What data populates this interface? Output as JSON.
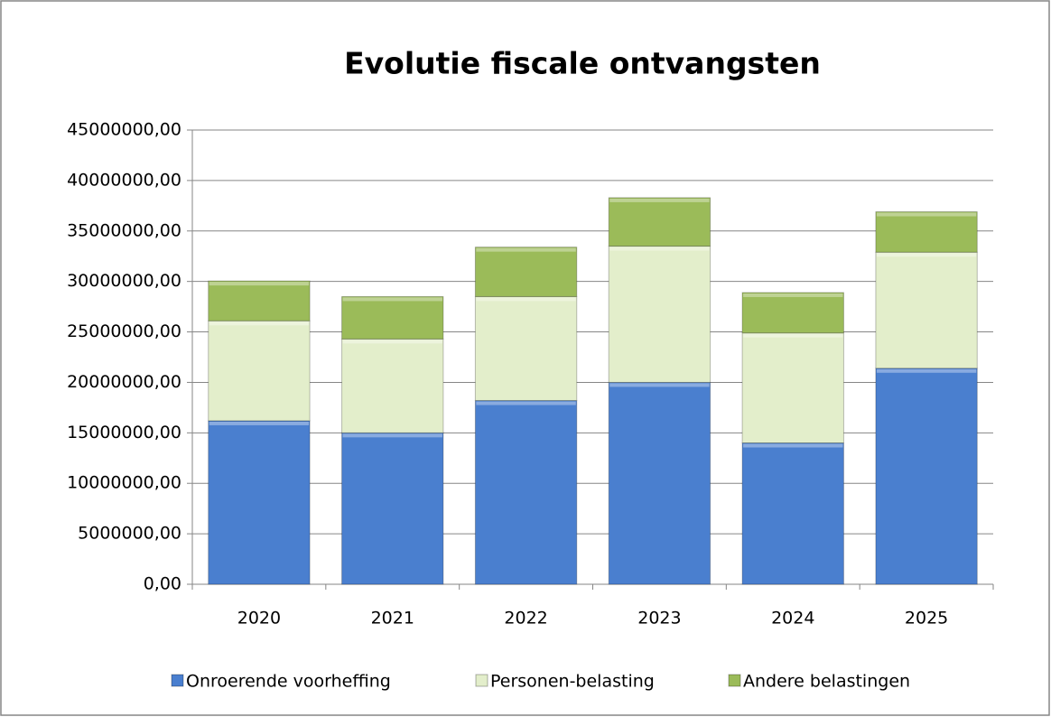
{
  "chart_data": {
    "type": "stacked_bar",
    "title": "Evolutie fiscale ontvangsten",
    "categories": [
      "2020",
      "2021",
      "2022",
      "2023",
      "2024",
      "2025"
    ],
    "series": [
      {
        "name": "Onroerende voorheffing",
        "color": "#4a7fcf",
        "values": [
          16200000,
          15000000,
          18200000,
          20000000,
          14000000,
          21400000
        ]
      },
      {
        "name": "Personen-belasting",
        "color": "#e3eecb",
        "values": [
          9900000,
          9300000,
          10300000,
          13500000,
          10900000,
          11500000
        ]
      },
      {
        "name": "Andere belastingen",
        "color": "#9bbb59",
        "values": [
          3950000,
          4200000,
          4900000,
          4800000,
          4000000,
          4000000
        ]
      }
    ],
    "ylim": [
      0,
      45000000
    ],
    "yticks": [
      {
        "value": 0,
        "label": "0,00"
      },
      {
        "value": 5000000,
        "label": "5000000,00"
      },
      {
        "value": 10000000,
        "label": "10000000,00"
      },
      {
        "value": 15000000,
        "label": "15000000,00"
      },
      {
        "value": 20000000,
        "label": "20000000,00"
      },
      {
        "value": 25000000,
        "label": "25000000,00"
      },
      {
        "value": 30000000,
        "label": "30000000,00"
      },
      {
        "value": 35000000,
        "label": "35000000,00"
      },
      {
        "value": 40000000,
        "label": "40000000,00"
      },
      {
        "value": 45000000,
        "label": "45000000,00"
      }
    ],
    "grid": true,
    "legend": "bottom"
  }
}
